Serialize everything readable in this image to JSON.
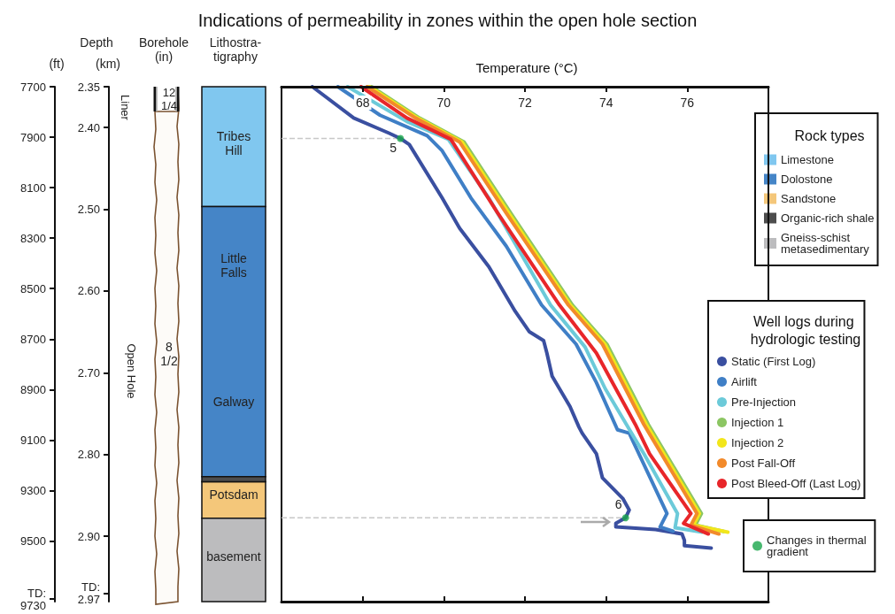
{
  "chart_data": [
    {
      "type": "bar",
      "title": "Indications of permeability in zones within the open hole section",
      "xlabel": "Lithostra-tigraphy",
      "ylabel": "(ft)",
      "y2label": "(km)",
      "legend": "right",
      "legend_title": "Rock types",
      "categories": [
        null
      ],
      "series": [
        {
          "name": "Limestone",
          "color": "#80c7ef",
          "values": [
            475
          ],
          "base": [
            7700
          ]
        },
        {
          "name": "Dolostone",
          "color": "#4585c7",
          "values": [
            1070
          ],
          "base": [
            8175
          ]
        },
        {
          "name": "Sandstone",
          "color": "#f4c77a",
          "values": [
            145
          ],
          "base": [
            9265
          ]
        },
        {
          "name": "Organic-rich shale",
          "color": "#4d4d4d",
          "values": [
            20
          ],
          "base": [
            9245
          ]
        },
        {
          "name": "Gneiss-schist metasedimentary",
          "color": "#bcbcbe",
          "values": [
            330
          ],
          "base": [
            9410
          ]
        }
      ],
      "ylim": [
        9740,
        7700
      ],
      "yticks": [
        7700,
        7900,
        8100,
        8300,
        8500,
        8700,
        8900,
        9100,
        9300,
        9500,
        {
          "value": 9730,
          "label": "TD:\n9730"
        }
      ],
      "y2lim": [
        2.98,
        2.35
      ],
      "y2ticks": [
        {
          "value": 2.35,
          "label": "2.35"
        },
        {
          "value": 2.4,
          "label": "2.40"
        },
        {
          "value": 2.5,
          "label": "2.50"
        },
        {
          "value": 2.6,
          "label": "2.60"
        },
        {
          "value": 2.7,
          "label": "2.70"
        },
        {
          "value": 2.8,
          "label": "2.80"
        },
        {
          "value": 2.9,
          "label": "2.90"
        },
        {
          "value": 2.97,
          "label": "TD:\n2.97"
        }
      ],
      "annotations": [
        "Depth",
        "Borehole (in)",
        "Liner",
        "12 1/4",
        "8 1/2",
        "Open Hole",
        "Tribes Hill",
        "Little Falls",
        "Galway",
        "Potsdam",
        "basement"
      ]
    },
    {
      "type": "line",
      "xlabel": "Temperature (°C)",
      "legend": "right",
      "legend_title": "Well logs during hydrologic testing",
      "tick_labels": "x",
      "xlim": [
        66,
        78
      ],
      "xticks": [
        68,
        70,
        72,
        74,
        76
      ],
      "ylim": [
        9740,
        7700
      ],
      "series": [
        {
          "name": "Static (First Log)",
          "color": "#3a4fa0",
          "x": [
            66.76,
            67.78,
            68.65,
            68.93,
            69.15,
            69.96,
            70.39,
            71.11,
            71.33,
            71.76,
            72.11,
            72.46,
            72.54,
            72.67,
            73.11,
            73.33,
            73.41,
            73.76,
            73.91,
            74.41,
            74.57,
            74.48,
            74.24,
            74.24,
            75.22,
            75.87,
            75.93,
            75.93,
            76.59
          ],
          "values": [
            7700,
            7824,
            7884,
            7905,
            7929,
            8141,
            8261,
            8413,
            8473,
            8590,
            8671,
            8706,
            8755,
            8847,
            8967,
            9048,
            9073,
            9154,
            9250,
            9331,
            9377,
            9408,
            9430,
            9444,
            9454,
            9472,
            9497,
            9518,
            9528
          ]
        },
        {
          "name": "Airlift",
          "color": "#3f7fc6",
          "x": [
            67.39,
            68.43,
            69.59,
            69.96,
            70.67,
            71.54,
            72.41,
            73.26,
            73.76,
            74.28,
            74.57,
            75.5,
            75.33,
            75.65
          ],
          "values": [
            7700,
            7813,
            7894,
            7954,
            8141,
            8332,
            8565,
            8720,
            8872,
            9059,
            9073,
            9391,
            9444,
            9461
          ]
        },
        {
          "name": "Pre-Injection",
          "color": "#6ccad9",
          "x": [
            67.63,
            69.09,
            70.11,
            71.11,
            72.63,
            73.48,
            73.98,
            74.63,
            74.93,
            75.76,
            75.7,
            76.37
          ],
          "values": [
            7700,
            7838,
            7908,
            8141,
            8565,
            8731,
            8897,
            9073,
            9154,
            9391,
            9447,
            9465
          ]
        },
        {
          "name": "Injection 1",
          "color": "#8cc663",
          "x": [
            68.22,
            69.4,
            70.5,
            71.65,
            73.17,
            74.02,
            75.04,
            76.35,
            76.2,
            76.9
          ],
          "values": [
            7700,
            7824,
            7919,
            8201,
            8565,
            8720,
            9038,
            9391,
            9437,
            9462
          ]
        },
        {
          "name": "Injection 2",
          "color": "#f2e61b",
          "x": [
            68.17,
            69.35,
            70.45,
            71.6,
            73.12,
            73.97,
            74.99,
            76.3,
            76.15,
            77.0
          ],
          "values": [
            7700,
            7824,
            7919,
            8201,
            8565,
            8720,
            9038,
            9391,
            9437,
            9465
          ]
        },
        {
          "name": "Post Fall-Off",
          "color": "#f28a2b",
          "x": [
            68.11,
            69.3,
            70.39,
            71.54,
            73.07,
            73.91,
            74.93,
            76.24,
            76.09,
            76.78
          ],
          "values": [
            7700,
            7824,
            7919,
            8201,
            8565,
            8720,
            9038,
            9391,
            9437,
            9472
          ]
        },
        {
          "name": "Post Bleed-Off (Last Log)",
          "color": "#e8262a",
          "x": [
            67.96,
            69.09,
            70.17,
            71.33,
            72.85,
            73.76,
            74.72,
            75.07,
            76.09,
            75.91,
            76.52
          ],
          "values": [
            7700,
            7824,
            7908,
            8201,
            8565,
            8755,
            9038,
            9154,
            9391,
            9430,
            9472
          ]
        },
        {
          "type": "scatter",
          "name": "Changes in thermal gradient",
          "color": "#1aa64b",
          "x": [
            68.93,
            74.48
          ],
          "values": [
            7905,
            9408
          ]
        }
      ],
      "ref_lines": [
        {
          "axis": "y",
          "value": 7905,
          "color": "#c8c8c8",
          "line_style": "dashed"
        },
        {
          "axis": "y",
          "value": 9408,
          "color": "#c8c8c8",
          "line_style": "dashed"
        }
      ],
      "annotations": [
        {
          "text": "5",
          "x": 68.93,
          "y": 7905
        },
        {
          "text": "6",
          "x": 74.48,
          "y": 9408
        }
      ]
    }
  ]
}
